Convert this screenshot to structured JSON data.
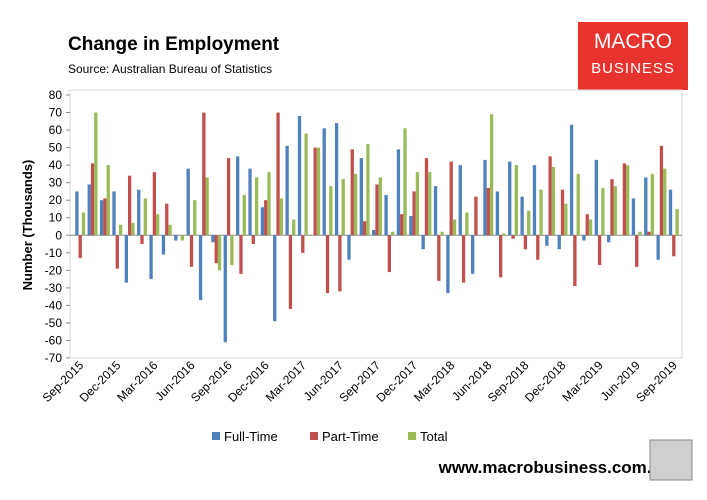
{
  "chart_data": {
    "type": "bar",
    "title": "Change in Employment",
    "subtitle": "Source: Australian Bureau of Statistics",
    "logo_top": "MACRO",
    "logo_bottom": "BUSINESS",
    "footer": "www.macrobusiness.com.au",
    "y_label": "Number (Thousands)",
    "categories": [
      "Sep-2015",
      null,
      null,
      "Dec-2015",
      null,
      null,
      "Mar-2016",
      null,
      null,
      "Jun-2016",
      null,
      null,
      "Sep-2016",
      null,
      null,
      "Dec-2016",
      null,
      null,
      "Mar-2017",
      null,
      null,
      "Jun-2017",
      null,
      null,
      "Sep-2017",
      null,
      null,
      "Dec-2017",
      null,
      null,
      "Mar-2018",
      null,
      null,
      "Jun-2018",
      null,
      null,
      "Sep-2018",
      null,
      null,
      "Dec-2018",
      null,
      null,
      "Mar-2019",
      null,
      null,
      "Jun-2019",
      null,
      null,
      "Sep-2019"
    ],
    "series": [
      {
        "name": "Full-Time",
        "color": "#4f81bd",
        "values": [
          25,
          29,
          20,
          25,
          -27,
          26,
          -25,
          -11,
          -3,
          38,
          -37,
          -4,
          -61,
          45,
          38,
          16,
          -49,
          51,
          68,
          0,
          61,
          64,
          -14,
          44,
          3,
          23,
          49,
          11,
          -8,
          28,
          -33,
          40,
          -22,
          43,
          25,
          42,
          22,
          40,
          -6,
          -8,
          63,
          -3,
          43,
          -4,
          0,
          21,
          33,
          -14,
          26
        ]
      },
      {
        "name": "Part-Time",
        "color": "#c0504d",
        "values": [
          -13,
          41,
          21,
          -19,
          34,
          -5,
          36,
          18,
          0,
          -18,
          70,
          -16,
          44,
          -22,
          -5,
          20,
          70,
          -42,
          -10,
          50,
          -33,
          -32,
          49,
          8,
          29,
          -21,
          12,
          25,
          44,
          -26,
          42,
          -27,
          22,
          27,
          -24,
          -2,
          -8,
          -14,
          45,
          26,
          -29,
          12,
          -17,
          32,
          41,
          -18,
          2,
          51,
          -12
        ]
      },
      {
        "name": "Total",
        "color": "#9bbb59",
        "values": [
          13,
          70,
          40,
          6,
          7,
          21,
          12,
          6,
          -3,
          20,
          33,
          -20,
          -17,
          23,
          33,
          36,
          21,
          9,
          58,
          50,
          28,
          32,
          35,
          52,
          33,
          2,
          61,
          36,
          36,
          2,
          9,
          13,
          0,
          69,
          1,
          40,
          14,
          26,
          39,
          18,
          35,
          9,
          27,
          28,
          40,
          2,
          35,
          38,
          15
        ]
      }
    ],
    "ylim": [
      -70,
      80
    ],
    "yticks": [
      -70,
      -60,
      -50,
      -40,
      -30,
      -20,
      -10,
      0,
      10,
      20,
      30,
      40,
      50,
      60,
      70,
      80
    ],
    "grid": false
  }
}
